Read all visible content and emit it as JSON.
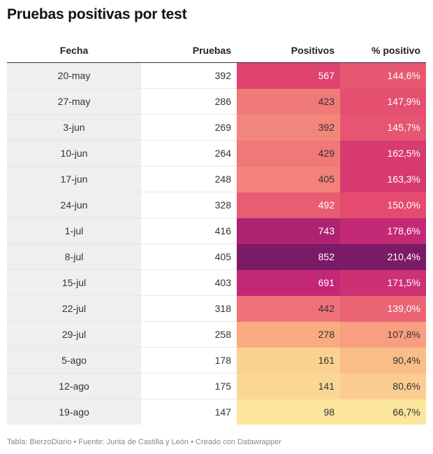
{
  "title": "Pruebas positivas por test",
  "footer": "Tabla: BierzoDiario • Fuente: Junta de Castilla y León • Creado con Datawrapper",
  "chart_data": {
    "type": "table",
    "columns": [
      "Fecha",
      "Pruebas",
      "Positivos",
      "% positivo"
    ],
    "rows": [
      {
        "fecha": "20-may",
        "pruebas": "392",
        "positivos": "567",
        "pct": "144,6%"
      },
      {
        "fecha": "27-may",
        "pruebas": "286",
        "positivos": "423",
        "pct": "147,9%"
      },
      {
        "fecha": "3-jun",
        "pruebas": "269",
        "positivos": "392",
        "pct": "145,7%"
      },
      {
        "fecha": "10-jun",
        "pruebas": "264",
        "positivos": "429",
        "pct": "162,5%"
      },
      {
        "fecha": "17-jun",
        "pruebas": "248",
        "positivos": "405",
        "pct": "163,3%"
      },
      {
        "fecha": "24-jun",
        "pruebas": "328",
        "positivos": "492",
        "pct": "150,0%"
      },
      {
        "fecha": "1-jul",
        "pruebas": "416",
        "positivos": "743",
        "pct": "178,6%"
      },
      {
        "fecha": "8-jul",
        "pruebas": "405",
        "positivos": "852",
        "pct": "210,4%"
      },
      {
        "fecha": "15-jul",
        "pruebas": "403",
        "positivos": "691",
        "pct": "171,5%"
      },
      {
        "fecha": "22-jul",
        "pruebas": "318",
        "positivos": "442",
        "pct": "139,0%"
      },
      {
        "fecha": "29-jul",
        "pruebas": "258",
        "positivos": "278",
        "pct": "107,8%"
      },
      {
        "fecha": "5-ago",
        "pruebas": "178",
        "positivos": "161",
        "pct": "90,4%"
      },
      {
        "fecha": "12-ago",
        "pruebas": "175",
        "positivos": "141",
        "pct": "80,6%"
      },
      {
        "fecha": "19-ago",
        "pruebas": "147",
        "positivos": "98",
        "pct": "66,7%"
      }
    ],
    "color_scale": [
      "#fce59c",
      "#fab484",
      "#f3847a",
      "#e2456e",
      "#c02677",
      "#7b1a66"
    ],
    "positivos_range": [
      98,
      852
    ],
    "pct_range": [
      66.7,
      210.4
    ]
  }
}
